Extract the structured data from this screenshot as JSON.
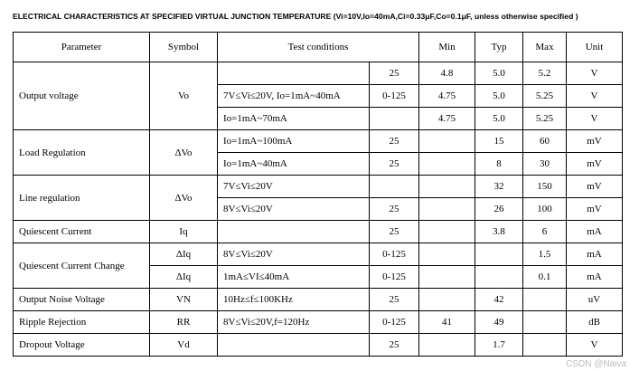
{
  "title": "ELECTRICAL CHARACTERISTICS AT SPECIFIED VIRTUAL JUNCTION TEMPERATURE (Vi=10V,Io=40mA,Ci=0.33μF,Co=0.1μF, unless otherwise specified )",
  "table": {
    "header": [
      "Parameter",
      "Symbol",
      "Test conditions",
      "Min",
      "Typ",
      "Max",
      "Unit"
    ],
    "groups": [
      {
        "parameter": "Output voltage",
        "symbol": "Vo",
        "rows": [
          {
            "conditions": null,
            "temp": "25",
            "min": "4.8",
            "typ": "5.0",
            "max": "5.2",
            "unit": "V"
          },
          {
            "conditions": "7V≤Vi≤20V, Io=1mA~40mA",
            "temp": "0-125",
            "min": "4.75",
            "typ": "5.0",
            "max": "5.25",
            "unit": "V"
          },
          {
            "conditions": "Io=1mA~70mA",
            "temp": null,
            "min": "4.75",
            "typ": "5.0",
            "max": "5.25",
            "unit": "V"
          }
        ]
      },
      {
        "parameter": "Load Regulation",
        "symbol": "ΔVo",
        "rows": [
          {
            "conditions": "Io=1mA~100mA",
            "temp": "25",
            "min": null,
            "typ": "15",
            "max": "60",
            "unit": "mV"
          },
          {
            "conditions": "Io=1mA~40mA",
            "temp": "25",
            "min": null,
            "typ": "8",
            "max": "30",
            "unit": "mV"
          }
        ]
      },
      {
        "parameter": "Line regulation",
        "symbol": "ΔVo",
        "rows": [
          {
            "conditions": "7V≤Vi≤20V",
            "temp": null,
            "min": null,
            "typ": "32",
            "max": "150",
            "unit": "mV"
          },
          {
            "conditions": "8V≤Vi≤20V",
            "temp": "25",
            "min": null,
            "typ": "26",
            "max": "100",
            "unit": "mV"
          }
        ]
      },
      {
        "parameter": "Quiescent Current",
        "symbol": "Iq",
        "rows": [
          {
            "conditions": null,
            "temp": "25",
            "min": null,
            "typ": "3.8",
            "max": "6",
            "unit": "mA"
          }
        ]
      },
      {
        "parameter": "Quiescent Current Change",
        "symbol": null,
        "rows": [
          {
            "symbol": "ΔIq",
            "conditions": "8V≤Vi≤20V",
            "temp": "0-125",
            "min": null,
            "typ": null,
            "max": "1.5",
            "unit": "mA"
          },
          {
            "symbol": "ΔIq",
            "conditions": "1mA≤VI≤40mA",
            "temp": "0-125",
            "min": null,
            "typ": null,
            "max": "0.1",
            "unit": "mA"
          }
        ]
      },
      {
        "parameter": "Output Noise Voltage",
        "symbol": "VN",
        "rows": [
          {
            "conditions": "10Hz≤f≤100KHz",
            "temp": "25",
            "min": null,
            "typ": "42",
            "max": null,
            "unit": "uV"
          }
        ]
      },
      {
        "parameter": "Ripple Rejection",
        "symbol": "RR",
        "rows": [
          {
            "conditions": "8V≤Vi≤20V,f=120Hz",
            "temp": "0-125",
            "min": "41",
            "typ": "49",
            "max": null,
            "unit": "dB"
          }
        ]
      },
      {
        "parameter": "Dropout Voltage",
        "symbol": "Vd",
        "rows": [
          {
            "conditions": null,
            "temp": "25",
            "min": null,
            "typ": "1.7",
            "max": null,
            "unit": "V"
          }
        ]
      }
    ]
  },
  "watermark": "CSDN @Naiva"
}
